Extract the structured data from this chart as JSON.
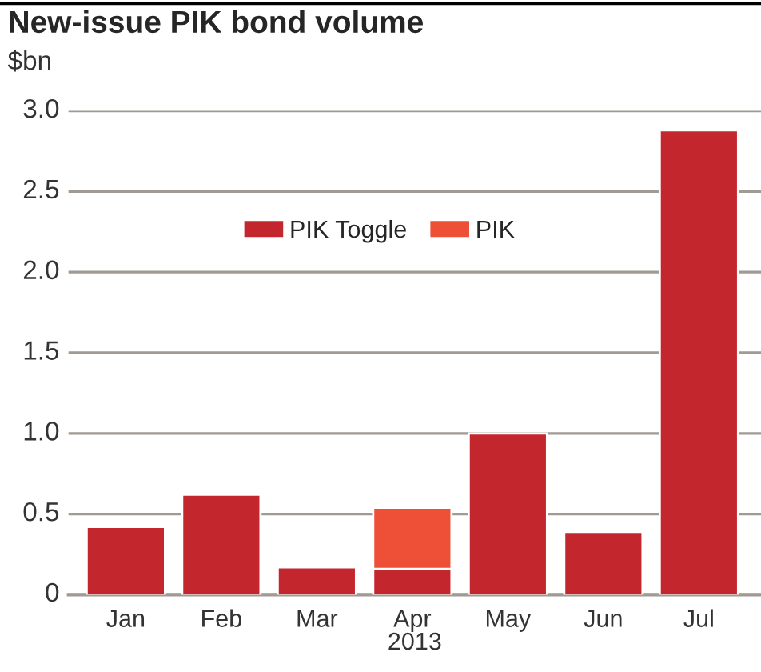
{
  "chart_data": {
    "type": "bar",
    "title": "New-issue PIK bond volume",
    "ylabel": "$bn",
    "xlabel": "2013",
    "categories": [
      "Jan",
      "Feb",
      "Mar",
      "Apr",
      "May",
      "Jun",
      "Jul"
    ],
    "stacked": true,
    "series": [
      {
        "name": "PIK Toggle",
        "color": "#c4262e",
        "values": [
          0.42,
          0.62,
          0.17,
          0.16,
          1.0,
          0.39,
          2.88
        ]
      },
      {
        "name": "PIK",
        "color": "#ee4f37",
        "values": [
          null,
          null,
          null,
          0.38,
          null,
          null,
          null
        ]
      }
    ],
    "ylim": [
      0,
      3.0
    ],
    "yticks": [
      {
        "value": 0,
        "label": "0"
      },
      0.5,
      {
        "value": 1,
        "label": "1.0"
      },
      1.5,
      {
        "value": 2,
        "label": "2.0"
      },
      2.5,
      {
        "value": 3,
        "label": "3.0"
      }
    ],
    "grid": "y",
    "legend": "top"
  }
}
